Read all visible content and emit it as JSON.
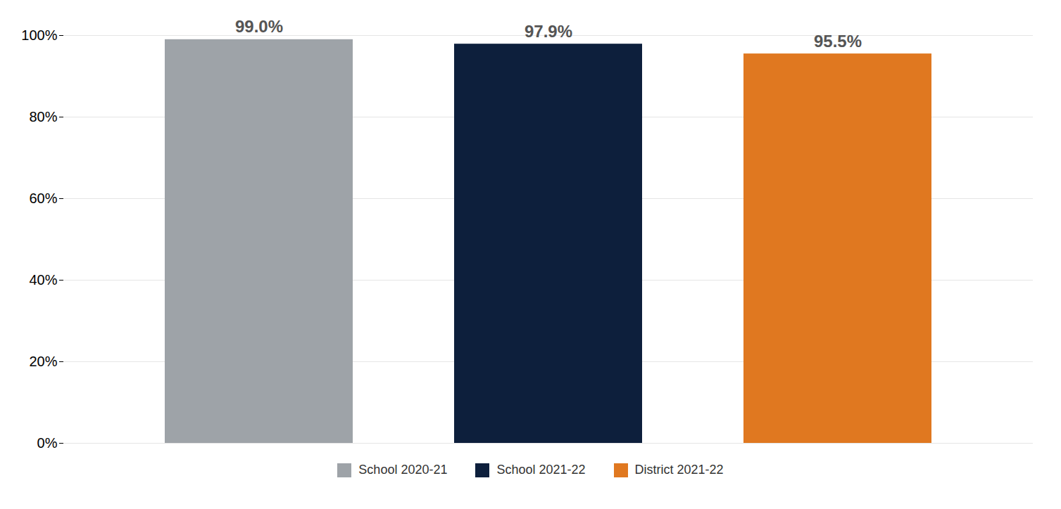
{
  "chart_data": {
    "type": "bar",
    "categories": [
      "School 2020-21",
      "School 2021-22",
      "District 2021-22"
    ],
    "values": [
      99.0,
      97.9,
      95.5
    ],
    "value_labels": [
      "99.0%",
      "97.9%",
      "95.5%"
    ],
    "colors": [
      "#9EA3A8",
      "#0D1F3C",
      "#E07820"
    ],
    "ylim": [
      0,
      100
    ],
    "yticks": [
      {
        "value": 0,
        "label": "0%"
      },
      {
        "value": 20,
        "label": "20%"
      },
      {
        "value": 40,
        "label": "40%"
      },
      {
        "value": 60,
        "label": "60%"
      },
      {
        "value": 80,
        "label": "80%"
      },
      {
        "value": 100,
        "label": "100%"
      }
    ],
    "grid": true,
    "data_labels": true,
    "tick_labels": "y",
    "legend": "bottom"
  }
}
